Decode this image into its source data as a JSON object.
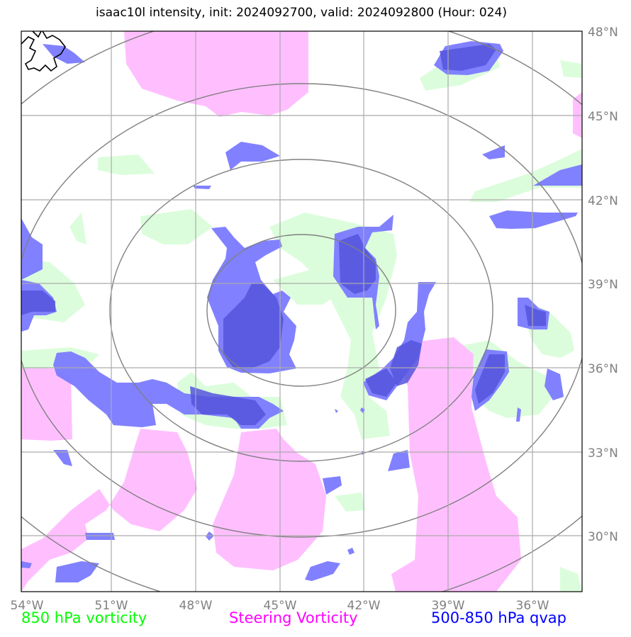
{
  "title": "isaac10l intensity, init: 2024092700, valid: 2024092800 (Hour: 024)",
  "map": {
    "lon_range": [
      -54,
      -34.2
    ],
    "lat_range": [
      27.9,
      48
    ],
    "lon_ticks": [
      "54°W",
      "51°W",
      "48°W",
      "45°W",
      "42°W",
      "39°W",
      "36°W"
    ],
    "lat_ticks": [
      "48°N",
      "45°N",
      "42°N",
      "39°N",
      "36°N",
      "33°N",
      "30°N"
    ],
    "center": {
      "lon": -44.2,
      "lat": 38.3
    },
    "range_rings_count": 4,
    "grid": true
  },
  "legend": {
    "vorticity_850": {
      "label": "850 hPa vorticity",
      "color": "#00ff00"
    },
    "steering_vorticity": {
      "label": "Steering Vorticity",
      "color": "#ff00ff"
    },
    "qvap": {
      "label": "500-850 hPa qvap",
      "color": "#0000ff"
    }
  },
  "colors": {
    "green_fill": "#dcfddc",
    "pink_fill": "#ffbfff",
    "blue_fill": "#7a7aff",
    "grid": "#aaaaaa",
    "rings": "#808080"
  }
}
